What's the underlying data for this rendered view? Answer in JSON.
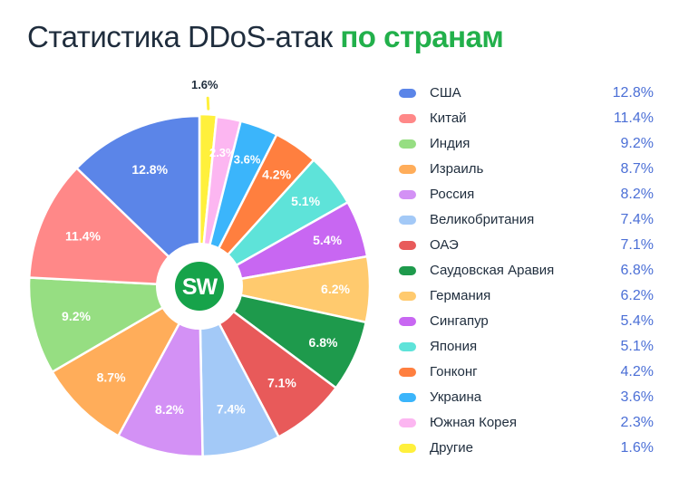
{
  "title": {
    "main": "Статистика DDoS-атак",
    "highlight": "по странам"
  },
  "logo": {
    "text": "SW"
  },
  "chart_data": {
    "type": "pie",
    "unit": "%",
    "categories": [
      "США",
      "Китай",
      "Индия",
      "Израиль",
      "Россия",
      "Великобритания",
      "ОАЭ",
      "Саудовская Аравия",
      "Германия",
      "Сингапур",
      "Япония",
      "Гонконг",
      "Украина",
      "Южная Корея",
      "Другие"
    ],
    "values": [
      12.8,
      11.4,
      9.2,
      8.7,
      8.2,
      7.4,
      7.1,
      6.8,
      6.2,
      5.4,
      5.1,
      4.2,
      3.6,
      2.3,
      1.6
    ],
    "labels": [
      "12.8%",
      "11.4%",
      "9.2%",
      "8.7%",
      "8.2%",
      "7.4%",
      "7.1%",
      "6.8%",
      "6.2%",
      "5.4%",
      "5.1%",
      "4.2%",
      "3.6%",
      "2.3%",
      "1.6%"
    ],
    "colors": [
      "#5b85e8",
      "#ff8888",
      "#96de82",
      "#ffad5a",
      "#d391f5",
      "#a3c9f7",
      "#e85a5a",
      "#1e9a4c",
      "#ffca6e",
      "#c867f2",
      "#5ee3d9",
      "#ff7f3f",
      "#3bb5fb",
      "#fcb6f1",
      "#fff03c"
    ],
    "slice_order": "clockwise from top, starting with Другие",
    "legend_position": "right"
  }
}
